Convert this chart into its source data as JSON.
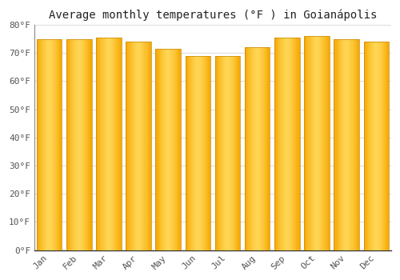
{
  "title": "Average monthly temperatures (°F ) in Goianápolis",
  "months": [
    "Jan",
    "Feb",
    "Mar",
    "Apr",
    "May",
    "Jun",
    "Jul",
    "Aug",
    "Sep",
    "Oct",
    "Nov",
    "Dec"
  ],
  "values": [
    75.0,
    75.0,
    75.5,
    74.0,
    71.5,
    69.0,
    68.9,
    72.0,
    75.5,
    76.0,
    75.0,
    74.0
  ],
  "bar_color_dark": "#F5A800",
  "bar_color_light": "#FFD555",
  "bar_edge_color": "#C8880A",
  "background_color": "#FFFFFF",
  "grid_color": "#DDDDDD",
  "ylim": [
    0,
    80
  ],
  "yticks": [
    0,
    10,
    20,
    30,
    40,
    50,
    60,
    70,
    80
  ],
  "ylabel_format": "°F",
  "title_fontsize": 10,
  "tick_fontsize": 8,
  "bar_width": 0.85
}
